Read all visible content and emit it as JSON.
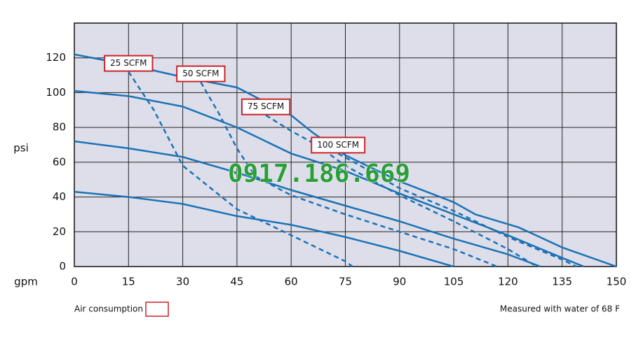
{
  "chart_data": {
    "type": "line",
    "y_label": "psi",
    "x_label": "gpm",
    "xlim": [
      0,
      150
    ],
    "ylim": [
      0,
      140
    ],
    "xticks": [
      0,
      15,
      30,
      45,
      60,
      75,
      90,
      105,
      120,
      135,
      150
    ],
    "yticks": [
      0,
      20,
      40,
      60,
      80,
      100,
      120
    ],
    "grid": true,
    "series": [
      {
        "color": "#1a73b6",
        "style": "solid",
        "x": [
          0,
          15,
          30,
          45,
          60,
          66,
          75,
          90,
          105,
          111,
          123,
          135,
          150
        ],
        "values": [
          122,
          116,
          109,
          103,
          87,
          77,
          64,
          49,
          37,
          30,
          22.5,
          11,
          0
        ]
      },
      {
        "color": "#1a73b6",
        "style": "solid",
        "x": [
          0,
          15,
          30,
          45,
          60,
          75,
          90,
          105,
          120,
          135,
          141
        ],
        "values": [
          101,
          98,
          92,
          80,
          65,
          55,
          42,
          30,
          18,
          5,
          0
        ]
      },
      {
        "color": "#1a73b6",
        "style": "solid",
        "x": [
          0,
          15,
          30,
          45,
          60,
          75,
          90,
          105,
          120,
          129
        ],
        "values": [
          72,
          68,
          63,
          54,
          44,
          35,
          26,
          16,
          7,
          0
        ]
      },
      {
        "color": "#1a73b6",
        "style": "solid",
        "x": [
          0,
          15,
          30,
          45,
          60,
          75,
          90,
          105
        ],
        "values": [
          43,
          40,
          36,
          29,
          24,
          17,
          9,
          0
        ]
      },
      {
        "name": "25 SCFM",
        "color": "#1a73b6",
        "style": "dashed",
        "x": [
          15,
          22,
          30,
          45,
          60,
          75,
          77
        ],
        "values": [
          112,
          90,
          58,
          33,
          18,
          3,
          0
        ]
      },
      {
        "name": "50 SCFM",
        "color": "#1a73b6",
        "style": "dashed",
        "x": [
          35,
          40,
          45,
          50,
          60,
          75,
          90,
          105,
          117
        ],
        "values": [
          106,
          88,
          68,
          52,
          41,
          30,
          20,
          10,
          0
        ]
      },
      {
        "name": "75 SCFM",
        "color": "#1a73b6",
        "style": "dashed",
        "x": [
          53,
          60,
          67,
          75,
          90,
          105,
          120,
          128
        ],
        "values": [
          87,
          78,
          70,
          58,
          41,
          26,
          10,
          0
        ]
      },
      {
        "name": "100 SCFM",
        "color": "#1a73b6",
        "style": "dashed",
        "x": [
          73,
          80,
          90,
          105,
          120,
          135,
          139
        ],
        "values": [
          65,
          57,
          45,
          32,
          17,
          4,
          0
        ]
      }
    ],
    "label_border_color": "#c8242b",
    "legend_label": "Air consumption",
    "footnote": "Measured with water of 68 F",
    "watermark": "0917.186.669"
  }
}
